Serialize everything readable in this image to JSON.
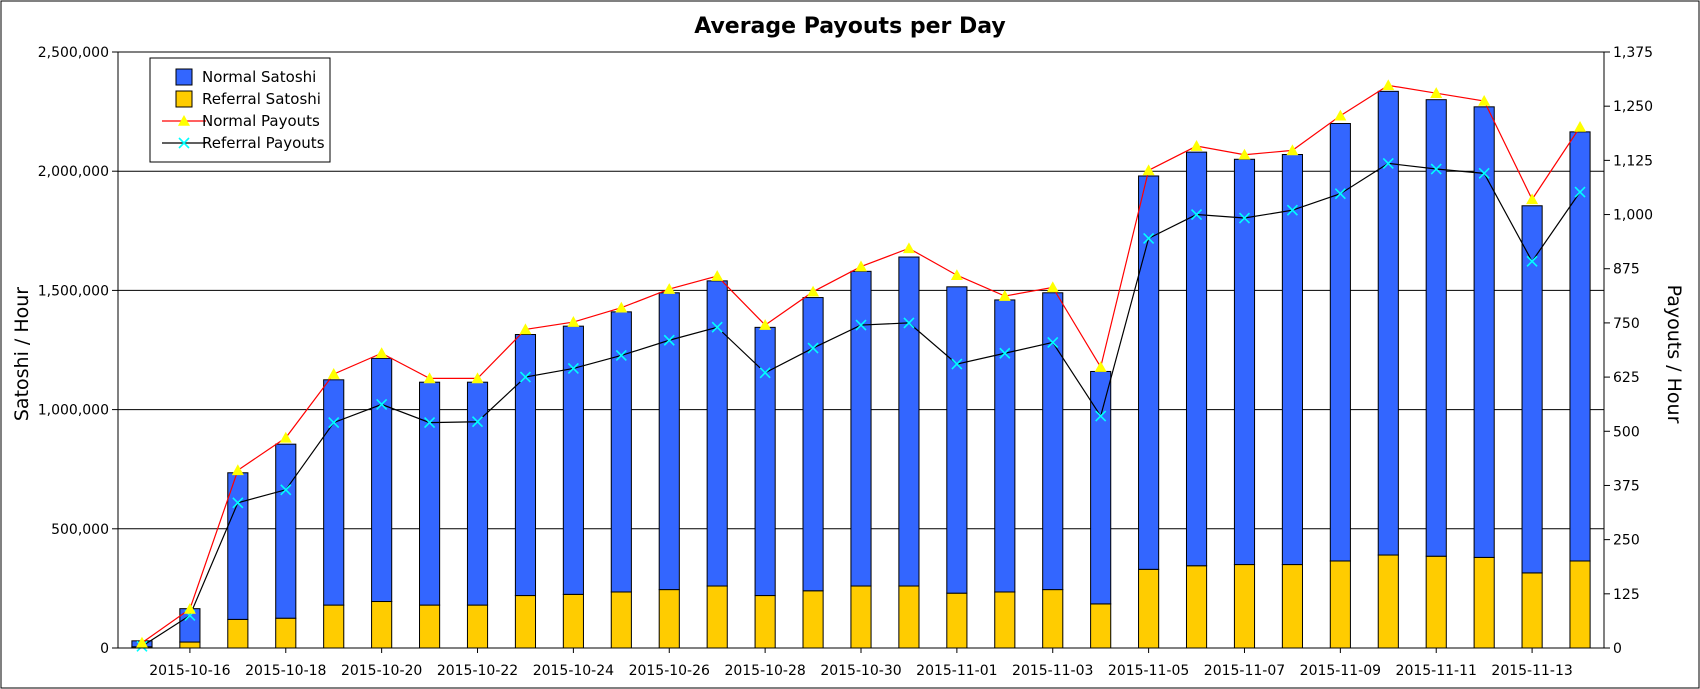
{
  "chart_data": {
    "type": "bar",
    "title": "Average Payouts per Day",
    "ylabel": "Satoshi / Hour",
    "y2label": "Payouts / Hour",
    "ylim": [
      0,
      2500000
    ],
    "y2lim": [
      0,
      1375
    ],
    "yticks": [
      "0",
      "500,000",
      "1,000,000",
      "1,500,000",
      "2,000,000",
      "2,500,000"
    ],
    "y2ticks": [
      "0",
      "125",
      "250",
      "375",
      "500",
      "625",
      "750",
      "875",
      "1,000",
      "1,125",
      "1,250",
      "1,375"
    ],
    "x": [
      "2015-10-15",
      "2015-10-16",
      "2015-10-17",
      "2015-10-18",
      "2015-10-19",
      "2015-10-20",
      "2015-10-21",
      "2015-10-22",
      "2015-10-23",
      "2015-10-24",
      "2015-10-25",
      "2015-10-26",
      "2015-10-27",
      "2015-10-28",
      "2015-10-29",
      "2015-10-30",
      "2015-10-31",
      "2015-11-01",
      "2015-11-02",
      "2015-11-03",
      "2015-11-04",
      "2015-11-05",
      "2015-11-06",
      "2015-11-07",
      "2015-11-08",
      "2015-11-09",
      "2015-11-10",
      "2015-11-11",
      "2015-11-12",
      "2015-11-13",
      "2015-11-14"
    ],
    "xtick_labels": [
      "2015-10-16",
      "2015-10-18",
      "2015-10-20",
      "2015-10-22",
      "2015-10-24",
      "2015-10-26",
      "2015-10-28",
      "2015-10-30",
      "2015-11-01",
      "2015-11-03",
      "2015-11-05",
      "2015-11-07",
      "2015-11-09",
      "2015-11-11",
      "2015-11-13"
    ],
    "legend_position": "top-left",
    "grid": true,
    "series": [
      {
        "name": "Normal Satoshi",
        "kind": "stacked-bar",
        "axis": "left",
        "color": "#3366ff",
        "values": [
          25000,
          140000,
          615000,
          730000,
          945000,
          1020000,
          935000,
          935000,
          1095000,
          1125000,
          1175000,
          1245000,
          1280000,
          1125000,
          1230000,
          1320000,
          1380000,
          1285000,
          1225000,
          1245000,
          975000,
          1650000,
          1735000,
          1700000,
          1720000,
          1835000,
          1945000,
          1915000,
          1890000,
          1540000,
          1800000
        ]
      },
      {
        "name": "Referral Satoshi",
        "kind": "stacked-bar",
        "axis": "left",
        "color": "#ffcc00",
        "values": [
          5000,
          25000,
          120000,
          125000,
          180000,
          195000,
          180000,
          180000,
          220000,
          225000,
          235000,
          245000,
          260000,
          220000,
          240000,
          260000,
          260000,
          230000,
          235000,
          245000,
          185000,
          330000,
          345000,
          350000,
          350000,
          365000,
          390000,
          385000,
          380000,
          315000,
          365000
        ]
      },
      {
        "name": "Normal Payouts",
        "kind": "line",
        "axis": "right",
        "color": "#ff0000",
        "marker_color": "#ffff00",
        "values": [
          12,
          90,
          410,
          485,
          632,
          680,
          622,
          622,
          735,
          752,
          785,
          828,
          858,
          745,
          822,
          880,
          922,
          860,
          812,
          832,
          648,
          1102,
          1158,
          1138,
          1148,
          1228,
          1298,
          1280,
          1262,
          1035,
          1202
        ]
      },
      {
        "name": "Referral Payouts",
        "kind": "line",
        "axis": "right",
        "color": "#000000",
        "marker_color": "#00ffff",
        "values": [
          4,
          75,
          335,
          365,
          520,
          562,
          520,
          522,
          625,
          645,
          675,
          710,
          740,
          635,
          692,
          745,
          750,
          655,
          680,
          705,
          535,
          945,
          1000,
          992,
          1010,
          1048,
          1118,
          1105,
          1095,
          892,
          1052
        ]
      }
    ]
  }
}
